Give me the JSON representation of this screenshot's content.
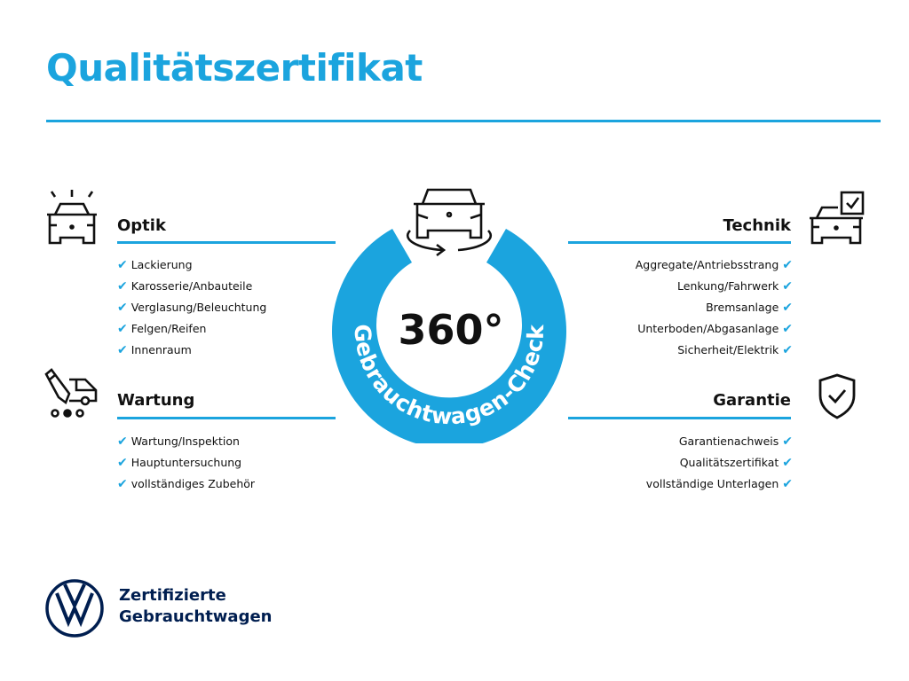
{
  "title": "Qualitätszertifikat",
  "accent_color": "#1ba4de",
  "brand_color": "#001e50",
  "center": {
    "number": "360°",
    "ring_text": "Gebrauchtwagen-Check",
    "icon": "car-rotate-icon"
  },
  "sections": {
    "optik": {
      "title": "Optik",
      "icon": "car-lights-icon",
      "items": [
        "Lackierung",
        "Karosserie/Anbauteile",
        "Verglasung/Beleuchtung",
        "Felgen/Reifen",
        "Innenraum"
      ]
    },
    "wartung": {
      "title": "Wartung",
      "icon": "car-service-icon",
      "items": [
        "Wartung/Inspektion",
        "Hauptuntersuchung",
        "vollständiges Zubehör"
      ]
    },
    "technik": {
      "title": "Technik",
      "icon": "car-checklist-icon",
      "items": [
        "Aggregate/Antriebsstrang",
        "Lenkung/Fahrwerk",
        "Bremsanlage",
        "Unterboden/Abgasanlage",
        "Sicherheit/Elektrik"
      ]
    },
    "garantie": {
      "title": "Garantie",
      "icon": "shield-check-icon",
      "items": [
        "Garantienachweis",
        "Qualitätszertifikat",
        "vollständige Unterlagen"
      ]
    }
  },
  "check_mark": "✔",
  "footer": {
    "line1": "Zertifizierte",
    "line2": "Gebrauchtwagen",
    "logo": "VW"
  }
}
